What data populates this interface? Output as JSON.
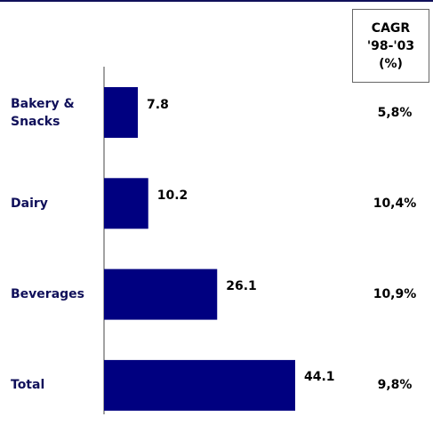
{
  "chart_data": {
    "type": "bar",
    "orientation": "horizontal",
    "categories": [
      "Bakery & Snacks",
      "Dairy",
      "Beverages",
      "Total"
    ],
    "values": [
      7.8,
      10.2,
      26.1,
      44.1
    ],
    "color": "#000080",
    "cagr_header": [
      "CAGR",
      "'98-'03",
      "(%)"
    ],
    "cagr_labels": [
      "5,8%",
      "10,4%",
      "10,9%",
      "9,8%"
    ]
  }
}
